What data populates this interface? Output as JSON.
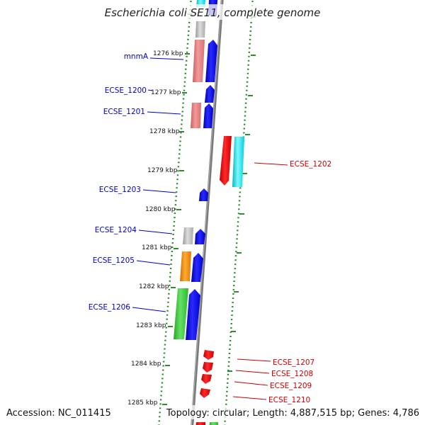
{
  "title": "Escherichia coli SE11, complete genome",
  "accession": "Accession: NC_011415",
  "topology": "Topology: circular; Length: 4,887,515 bp; Genes: 4,786",
  "scale": {
    "ticks": [
      "1276 kbp",
      "1277 kbp",
      "1278 kbp",
      "1279 kbp",
      "1280 kbp",
      "1281 kbp",
      "1282 kbp",
      "1283 kbp",
      "1284 kbp",
      "1285 kbp"
    ]
  },
  "genes_left": [
    {
      "label": "mnmA",
      "color": "#0000cc"
    },
    {
      "label": "ECSE_1200",
      "color": "#0000cc"
    },
    {
      "label": "ECSE_1201",
      "color": "#0000cc"
    },
    {
      "label": "ECSE_1203",
      "color": "#0000cc"
    },
    {
      "label": "ECSE_1204",
      "color": "#0000cc"
    },
    {
      "label": "ECSE_1205",
      "color": "#0000cc"
    },
    {
      "label": "ECSE_1206",
      "color": "#0000cc"
    }
  ],
  "genes_right": [
    {
      "label": "ECSE_1202",
      "color": "#cc0000"
    },
    {
      "label": "ECSE_1207",
      "color": "#cc0000"
    },
    {
      "label": "ECSE_1208",
      "color": "#cc0000"
    },
    {
      "label": "ECSE_1209",
      "color": "#cc0000"
    },
    {
      "label": "ECSE_1210",
      "color": "#cc0000"
    }
  ],
  "colors": {
    "forward_cds": "#0000ff",
    "reverse_cds": "#ff0000",
    "cog_salmon": "#e88080",
    "cog_cyan": "#00e5ee",
    "cog_gray": "#b8b8b8",
    "cog_orange": "#ff8c00",
    "cog_green": "#33cc33",
    "dotted_ring": "#2e8b2e",
    "backbone": "#808080"
  }
}
